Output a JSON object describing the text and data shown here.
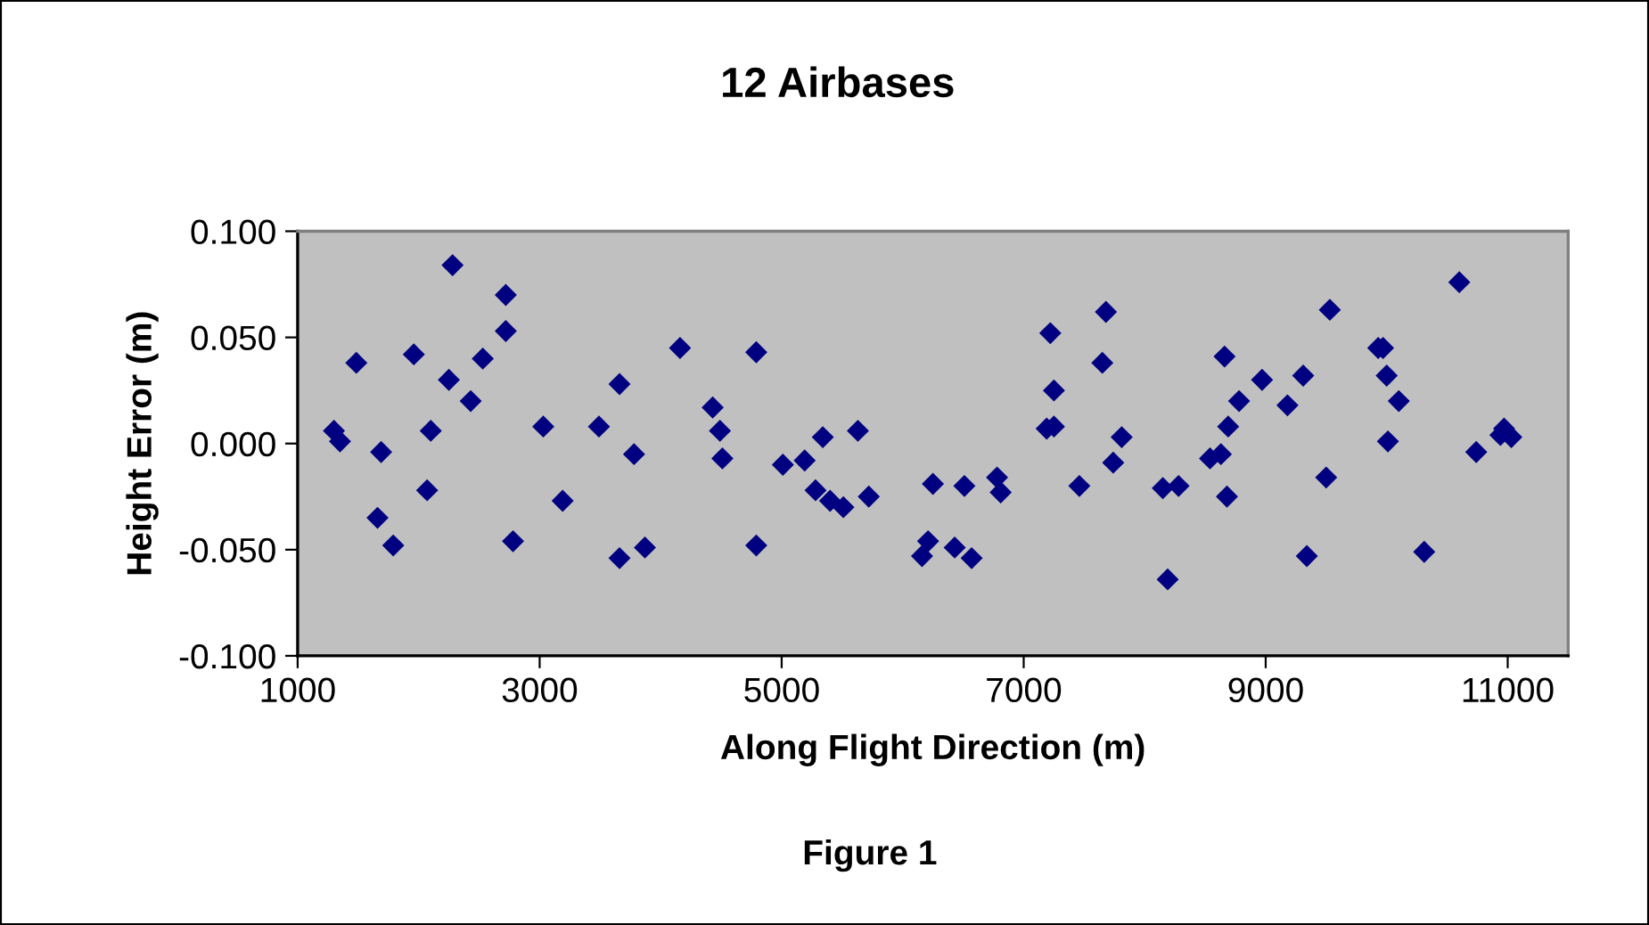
{
  "chart_data": {
    "type": "scatter",
    "title": "12 Airbases",
    "xlabel": "Along Flight Direction (m)",
    "ylabel": "Height Error (m)",
    "annotations": [
      "Figure 1"
    ],
    "marker": "diamond",
    "grid": false,
    "xlim": [
      1000,
      11500
    ],
    "xticks": [
      1000,
      3000,
      5000,
      7000,
      9000,
      11000
    ],
    "ylim": [
      -0.1,
      0.1
    ],
    "yticks": [
      {
        "value": -0.1,
        "label": "-0.100"
      },
      {
        "value": -0.05,
        "label": "-0.050"
      },
      {
        "value": 0,
        "label": "0.000"
      },
      {
        "value": 0.05,
        "label": "0.050"
      },
      {
        "value": 0.1,
        "label": "0.100"
      }
    ],
    "series": [
      {
        "color": "#000080",
        "x": [
          1300,
          1350,
          1485,
          1690,
          1660,
          1790,
          1960,
          2070,
          2100,
          2280,
          2250,
          2430,
          2530,
          2720,
          2720,
          2780,
          3030,
          3190,
          3490,
          3660,
          3660,
          3780,
          3870,
          4160,
          4430,
          4490,
          4510,
          4790,
          4790,
          5010,
          5190,
          5280,
          5340,
          5400,
          5510,
          5630,
          5720,
          6160,
          6210,
          6250,
          6430,
          6570,
          6510,
          6780,
          6810,
          7190,
          7220,
          7250,
          7250,
          7460,
          7650,
          7680,
          7740,
          7810,
          8150,
          8190,
          8280,
          8540,
          8630,
          8660,
          8680,
          8690,
          8780,
          8970,
          9180,
          9310,
          9340,
          9500,
          9530,
          9930,
          9970,
          10000,
          10010,
          10100,
          10310,
          10600,
          10740,
          10940,
          10970,
          11030
        ],
        "values": [
          0.006,
          0.001,
          0.038,
          -0.004,
          -0.035,
          -0.048,
          0.042,
          -0.022,
          0.006,
          0.084,
          0.03,
          0.02,
          0.04,
          0.07,
          0.053,
          -0.046,
          0.008,
          -0.027,
          0.008,
          0.028,
          -0.054,
          -0.005,
          -0.049,
          0.045,
          0.017,
          0.006,
          -0.007,
          0.043,
          -0.048,
          -0.01,
          -0.008,
          -0.022,
          0.003,
          -0.027,
          -0.03,
          0.006,
          -0.025,
          -0.053,
          -0.046,
          -0.019,
          -0.049,
          -0.054,
          -0.02,
          -0.016,
          -0.023,
          0.007,
          0.052,
          0.025,
          0.008,
          -0.02,
          0.038,
          0.062,
          -0.009,
          0.003,
          -0.021,
          -0.064,
          -0.02,
          -0.007,
          -0.005,
          0.041,
          -0.025,
          0.008,
          0.02,
          0.03,
          0.018,
          0.032,
          -0.053,
          -0.016,
          0.063,
          0.045,
          0.045,
          0.032,
          0.001,
          0.02,
          -0.051,
          0.076,
          -0.004,
          0.004,
          0.007,
          0.003
        ]
      }
    ]
  }
}
